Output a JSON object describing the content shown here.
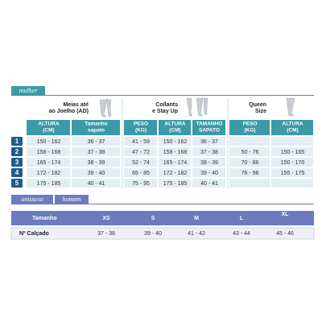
{
  "women": {
    "tab": "mulher",
    "products": [
      [
        "Meias até",
        "ao Joelho (AD)"
      ],
      [
        "Collants",
        "e Stay Up"
      ],
      [
        "Queen",
        "Size"
      ]
    ],
    "columns": [
      [
        "ALTURA",
        "(CM)"
      ],
      [
        "Tamanho",
        "sapato"
      ],
      [
        "PESO",
        "(KG)"
      ],
      [
        "ALTURA",
        "(CM)"
      ],
      [
        "TAMANHO",
        "SAPATO"
      ],
      [
        "PESO",
        "(KG)"
      ],
      [
        "ALTURA",
        "(CM)"
      ]
    ],
    "rows": [
      {
        "number": "1",
        "cells": [
          "150 - 162",
          "36 - 37",
          "41 - 59",
          "150 - 162",
          "36 - 37",
          null,
          null
        ]
      },
      {
        "number": "2",
        "cells": [
          "158 - 168",
          "37 - 38",
          "47 - 72",
          "158 - 168",
          "37 - 38",
          "50 - 76",
          "150 - 165"
        ]
      },
      {
        "number": "3",
        "cells": [
          "165 - 174",
          "38 - 39",
          "52 - 74",
          "165 - 174",
          "38 - 39",
          "70 - 86",
          "150 - 170"
        ]
      },
      {
        "number": "4",
        "cells": [
          "172 - 182",
          "39 - 40",
          "65 - 85",
          "172 - 182",
          "39 - 40",
          "76 - 96",
          "155 - 175"
        ]
      },
      {
        "number": "5",
        "cells": [
          "175 - 185",
          "40 - 41",
          "75 - 95",
          "175 - 185",
          "40 - 41",
          null,
          null
        ]
      }
    ]
  },
  "unisex": {
    "tabs": [
      "unissexo",
      "homem"
    ],
    "header": {
      "label": "Tamanho",
      "sizes": [
        "XS",
        "S",
        "M",
        "L",
        "XL"
      ]
    },
    "shoe": {
      "label": "Nº Calçado",
      "values": [
        "37 - 38",
        "39 - 40",
        "41 - 42",
        "43 - 44",
        "45 - 46"
      ]
    }
  }
}
